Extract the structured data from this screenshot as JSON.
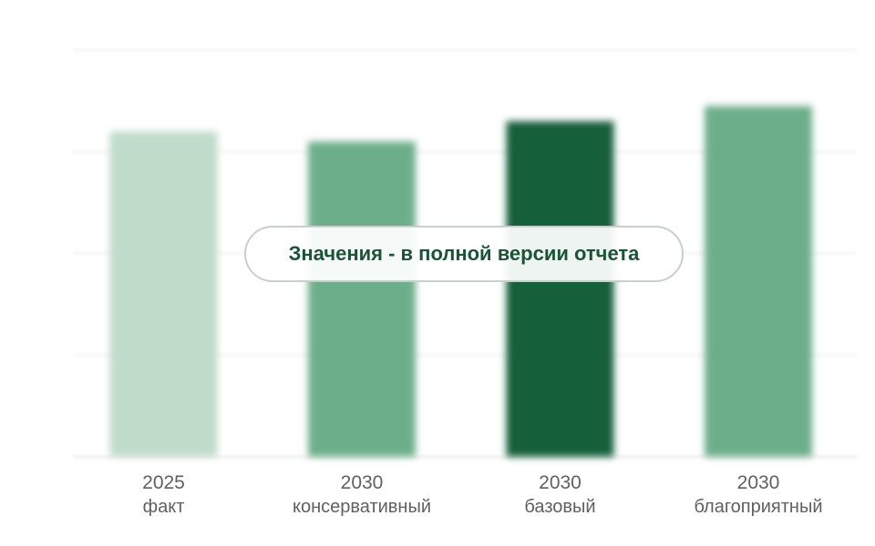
{
  "chart_data": {
    "type": "bar",
    "categories": [
      {
        "year": "2025",
        "scenario": "факт"
      },
      {
        "year": "2030",
        "scenario": "консервативный"
      },
      {
        "year": "2030",
        "scenario": "базовый"
      },
      {
        "year": "2030",
        "scenario": "благоприятный"
      }
    ],
    "values": [
      3.2,
      3.1,
      3.3,
      3.45
    ],
    "ylim": [
      0,
      4
    ],
    "grid": true,
    "colors": [
      "#c0dbc9",
      "#6dae8a",
      "#175e3a",
      "#6dae8a"
    ],
    "title": "",
    "xlabel": "",
    "ylabel": ""
  },
  "overlay": {
    "message": "Значения - в полной версии отчета"
  }
}
